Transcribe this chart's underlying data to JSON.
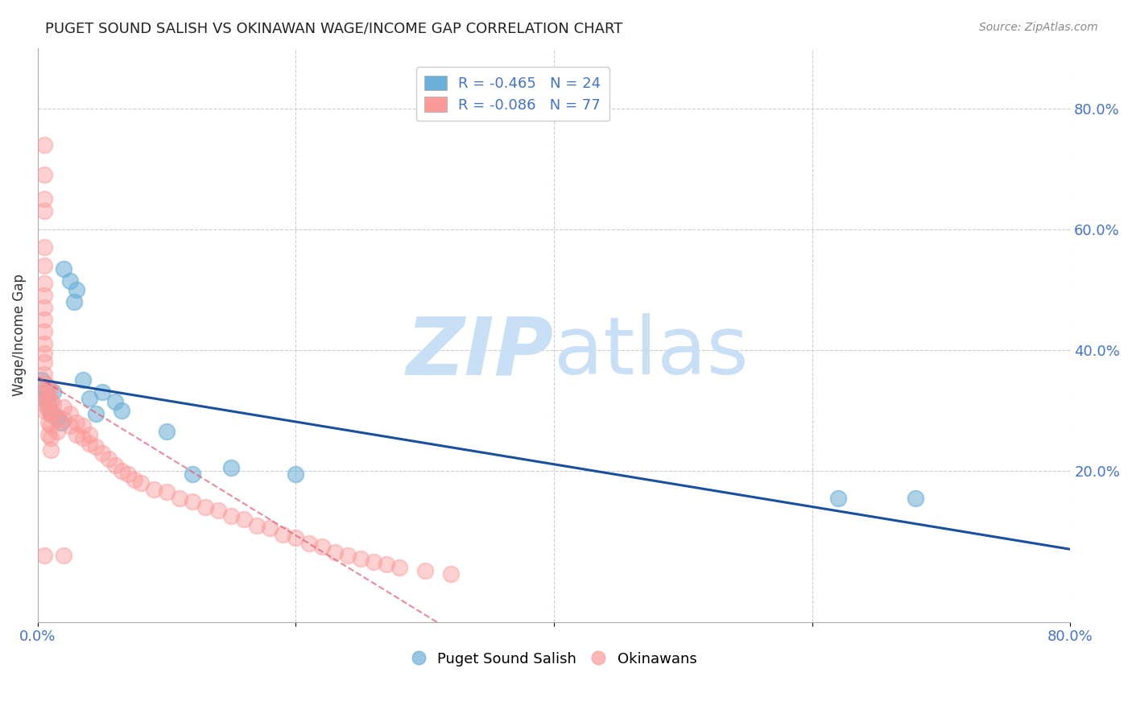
{
  "title": "PUGET SOUND SALISH VS OKINAWAN WAGE/INCOME GAP CORRELATION CHART",
  "source": "Source: ZipAtlas.com",
  "ylabel": "Wage/Income Gap",
  "right_yticks": [
    "80.0%",
    "60.0%",
    "40.0%",
    "20.0%"
  ],
  "right_ytick_vals": [
    0.8,
    0.6,
    0.4,
    0.2
  ],
  "legend1_label": "R = -0.465   N = 24",
  "legend2_label": "R = -0.086   N = 77",
  "legend_bottom1": "Puget Sound Salish",
  "legend_bottom2": "Okinawans",
  "blue_color": "#6baed6",
  "pink_color": "#fb9a99",
  "line_blue": "#1a4f9e",
  "line_pink": "#e05a70",
  "watermark_zip_color": "#c8dff5",
  "watermark_atlas_color": "#c8dff5",
  "blue_scatter_x": [
    0.02,
    0.025,
    0.03,
    0.028,
    0.035,
    0.012,
    0.005,
    0.008,
    0.01,
    0.015,
    0.018,
    0.06,
    0.065,
    0.1,
    0.12,
    0.15,
    0.62,
    0.68,
    0.003,
    0.007,
    0.04,
    0.045,
    0.05,
    0.2
  ],
  "blue_scatter_y": [
    0.535,
    0.515,
    0.5,
    0.48,
    0.35,
    0.33,
    0.32,
    0.31,
    0.295,
    0.29,
    0.28,
    0.315,
    0.3,
    0.265,
    0.195,
    0.205,
    0.155,
    0.155,
    0.35,
    0.33,
    0.32,
    0.295,
    0.33,
    0.195
  ],
  "pink_scatter_x": [
    0.005,
    0.005,
    0.005,
    0.005,
    0.005,
    0.005,
    0.005,
    0.005,
    0.005,
    0.005,
    0.005,
    0.005,
    0.005,
    0.005,
    0.005,
    0.005,
    0.005,
    0.005,
    0.005,
    0.005,
    0.005,
    0.008,
    0.008,
    0.008,
    0.008,
    0.008,
    0.01,
    0.01,
    0.01,
    0.01,
    0.01,
    0.01,
    0.012,
    0.012,
    0.015,
    0.015,
    0.02,
    0.02,
    0.02,
    0.025,
    0.025,
    0.03,
    0.03,
    0.035,
    0.035,
    0.04,
    0.04,
    0.045,
    0.05,
    0.055,
    0.06,
    0.065,
    0.07,
    0.075,
    0.08,
    0.09,
    0.1,
    0.11,
    0.12,
    0.13,
    0.14,
    0.15,
    0.16,
    0.17,
    0.18,
    0.19,
    0.2,
    0.21,
    0.22,
    0.23,
    0.24,
    0.25,
    0.26,
    0.27,
    0.28,
    0.3,
    0.32
  ],
  "pink_scatter_y": [
    0.74,
    0.69,
    0.65,
    0.63,
    0.57,
    0.54,
    0.51,
    0.49,
    0.47,
    0.45,
    0.43,
    0.41,
    0.395,
    0.38,
    0.36,
    0.345,
    0.33,
    0.32,
    0.31,
    0.3,
    0.06,
    0.34,
    0.32,
    0.3,
    0.28,
    0.26,
    0.335,
    0.315,
    0.295,
    0.275,
    0.255,
    0.235,
    0.31,
    0.295,
    0.285,
    0.265,
    0.305,
    0.285,
    0.06,
    0.295,
    0.275,
    0.28,
    0.26,
    0.275,
    0.255,
    0.26,
    0.245,
    0.24,
    0.23,
    0.22,
    0.21,
    0.2,
    0.195,
    0.185,
    0.18,
    0.17,
    0.165,
    0.155,
    0.15,
    0.14,
    0.135,
    0.125,
    0.12,
    0.11,
    0.105,
    0.095,
    0.09,
    0.08,
    0.075,
    0.065,
    0.06,
    0.055,
    0.05,
    0.045,
    0.04,
    0.035,
    0.03
  ],
  "xlim": [
    0.0,
    0.8
  ],
  "ylim": [
    -0.05,
    0.9
  ],
  "grid_color": "#cccccc",
  "background_color": "#ffffff",
  "label_color": "#4472c4",
  "title_color": "#222222",
  "source_color": "#888888"
}
